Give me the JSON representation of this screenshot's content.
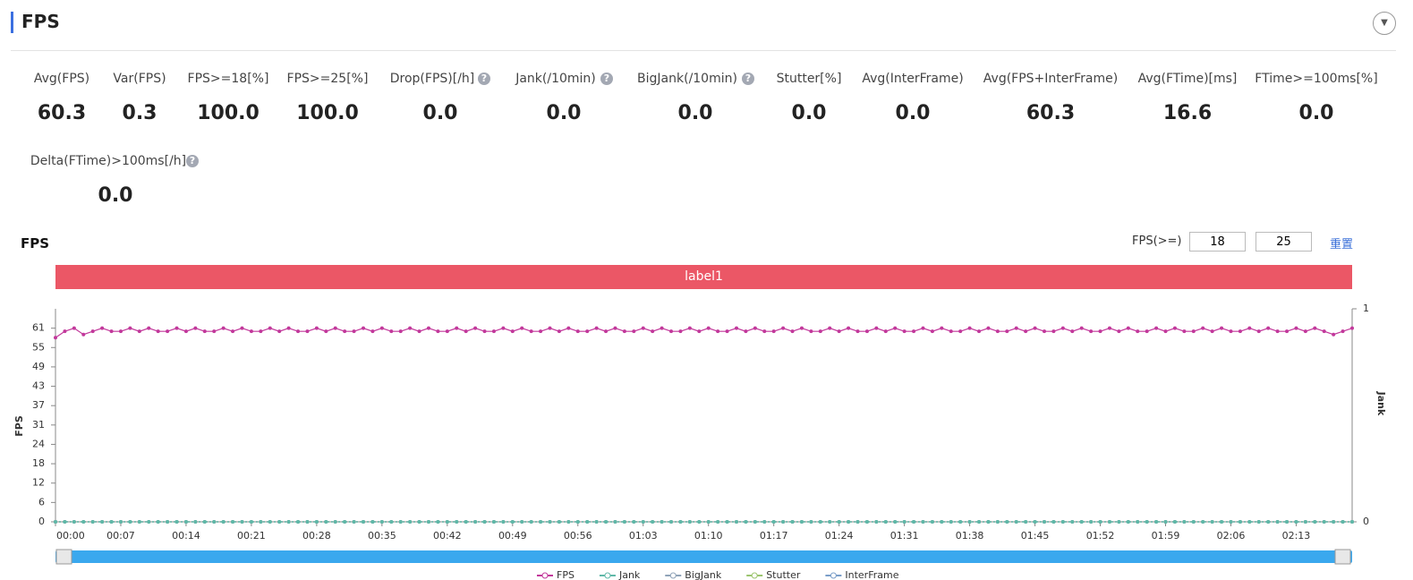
{
  "header": {
    "title": "FPS"
  },
  "metrics": [
    {
      "label": "Avg(FPS)",
      "value": "60.3"
    },
    {
      "label": "Var(FPS)",
      "value": "0.3"
    },
    {
      "label": "FPS>=18[%]",
      "value": "100.0"
    },
    {
      "label": "FPS>=25[%]",
      "value": "100.0"
    },
    {
      "label": "Drop(FPS)[/h]",
      "value": "0.0"
    },
    {
      "label": "Jank(/10min)",
      "value": "0.0"
    },
    {
      "label": "BigJank(/10min)",
      "value": "0.0"
    },
    {
      "label": "Stutter[%]",
      "value": "0.0"
    },
    {
      "label": "Avg(InterFrame)",
      "value": "0.0"
    },
    {
      "label": "Avg(FPS+InterFrame)",
      "value": "60.3"
    },
    {
      "label": "Avg(FTime)[ms]",
      "value": "16.6"
    },
    {
      "label": "FTime>=100ms[%]",
      "value": "0.0"
    },
    {
      "label": "Delta(FTime)>100ms[/h]",
      "value": "0.0"
    }
  ],
  "chart_panel": {
    "title": "FPS",
    "threshold_label": "FPS(>=)",
    "thresholds": [
      18,
      25
    ],
    "reset": "重置",
    "band_label": "label1"
  },
  "chart_data": {
    "type": "line",
    "y_label": "FPS",
    "y2_label": "Jank",
    "categories": [
      "00:00",
      null,
      null,
      null,
      null,
      null,
      null,
      "00:07",
      null,
      null,
      null,
      null,
      null,
      null,
      "00:14",
      null,
      null,
      null,
      null,
      null,
      null,
      "00:21",
      null,
      null,
      null,
      null,
      null,
      null,
      "00:28",
      null,
      null,
      null,
      null,
      null,
      null,
      "00:35",
      null,
      null,
      null,
      null,
      null,
      null,
      "00:42",
      null,
      null,
      null,
      null,
      null,
      null,
      "00:49",
      null,
      null,
      null,
      null,
      null,
      null,
      "00:56",
      null,
      null,
      null,
      null,
      null,
      null,
      "01:03",
      null,
      null,
      null,
      null,
      null,
      null,
      "01:10",
      null,
      null,
      null,
      null,
      null,
      null,
      "01:17",
      null,
      null,
      null,
      null,
      null,
      null,
      "01:24",
      null,
      null,
      null,
      null,
      null,
      null,
      "01:31",
      null,
      null,
      null,
      null,
      null,
      null,
      "01:38",
      null,
      null,
      null,
      null,
      null,
      null,
      "01:45",
      null,
      null,
      null,
      null,
      null,
      null,
      "01:52",
      null,
      null,
      null,
      null,
      null,
      null,
      "01:59",
      null,
      null,
      null,
      null,
      null,
      null,
      "02:06",
      null,
      null,
      null,
      null,
      null,
      null,
      "02:13",
      null,
      null,
      null,
      null,
      null,
      null
    ],
    "ylim": [
      0,
      67.1
    ],
    "yticks": [
      0,
      {
        "value": 6.1,
        "label": "6"
      },
      {
        "value": 12.2,
        "label": "12"
      },
      {
        "value": 18.3,
        "label": "18"
      },
      {
        "value": 24.4,
        "label": "24"
      },
      {
        "value": 30.5,
        "label": "31"
      },
      {
        "value": 36.6,
        "label": "37"
      },
      {
        "value": 42.7,
        "label": "43"
      },
      {
        "value": 48.8,
        "label": "49"
      },
      {
        "value": 54.9,
        "label": "55"
      },
      61
    ],
    "y2lim": [
      0,
      1
    ],
    "y2ticks": [
      0,
      1
    ],
    "series": [
      {
        "name": "FPS",
        "color": "#c2389b",
        "values": [
          58,
          60,
          61,
          59,
          60,
          61,
          60,
          60,
          61,
          60,
          61,
          60,
          60,
          61,
          60,
          61,
          60,
          60,
          61,
          60,
          61,
          60,
          60,
          61,
          60,
          61,
          60,
          60,
          61,
          60,
          61,
          60,
          60,
          61,
          60,
          61,
          60,
          60,
          61,
          60,
          61,
          60,
          60,
          61,
          60,
          61,
          60,
          60,
          61,
          60,
          61,
          60,
          60,
          61,
          60,
          61,
          60,
          60,
          61,
          60,
          61,
          60,
          60,
          61,
          60,
          61,
          60,
          60,
          61,
          60,
          61,
          60,
          60,
          61,
          60,
          61,
          60,
          60,
          61,
          60,
          61,
          60,
          60,
          61,
          60,
          61,
          60,
          60,
          61,
          60,
          61,
          60,
          60,
          61,
          60,
          61,
          60,
          60,
          61,
          60,
          61,
          60,
          60,
          61,
          60,
          61,
          60,
          60,
          61,
          60,
          61,
          60,
          60,
          61,
          60,
          61,
          60,
          60,
          61,
          60,
          61,
          60,
          60,
          61,
          60,
          61,
          60,
          60,
          61,
          60,
          61,
          60,
          60,
          61,
          60,
          61,
          60,
          59,
          60,
          61
        ]
      },
      {
        "name": "Jank",
        "color": "#5fb8a8",
        "axis": "y2",
        "values": [
          0,
          0,
          0,
          0,
          0,
          0,
          0,
          0,
          0,
          0,
          0,
          0,
          0,
          0,
          0,
          0,
          0,
          0,
          0,
          0,
          0,
          0,
          0,
          0,
          0,
          0,
          0,
          0,
          0,
          0,
          0,
          0,
          0,
          0,
          0,
          0,
          0,
          0,
          0,
          0,
          0,
          0,
          0,
          0,
          0,
          0,
          0,
          0,
          0,
          0,
          0,
          0,
          0,
          0,
          0,
          0,
          0,
          0,
          0,
          0,
          0,
          0,
          0,
          0,
          0,
          0,
          0,
          0,
          0,
          0,
          0,
          0,
          0,
          0,
          0,
          0,
          0,
          0,
          0,
          0,
          0,
          0,
          0,
          0,
          0,
          0,
          0,
          0,
          0,
          0,
          0,
          0,
          0,
          0,
          0,
          0,
          0,
          0,
          0,
          0,
          0,
          0,
          0,
          0,
          0,
          0,
          0,
          0,
          0,
          0,
          0,
          0,
          0,
          0,
          0,
          0,
          0,
          0,
          0,
          0,
          0,
          0,
          0,
          0,
          0,
          0,
          0,
          0,
          0,
          0,
          0,
          0,
          0,
          0,
          0,
          0,
          0,
          0,
          0,
          0
        ]
      },
      {
        "name": "BigJank",
        "color": "#8fa3b8",
        "axis": "y2",
        "values": [
          0,
          0,
          0,
          0,
          0,
          0,
          0,
          0,
          0,
          0,
          0,
          0,
          0,
          0,
          0,
          0,
          0,
          0,
          0,
          0,
          0,
          0,
          0,
          0,
          0,
          0,
          0,
          0,
          0,
          0,
          0,
          0,
          0,
          0,
          0,
          0,
          0,
          0,
          0,
          0,
          0,
          0,
          0,
          0,
          0,
          0,
          0,
          0,
          0,
          0,
          0,
          0,
          0,
          0,
          0,
          0,
          0,
          0,
          0,
          0,
          0,
          0,
          0,
          0,
          0,
          0,
          0,
          0,
          0,
          0,
          0,
          0,
          0,
          0,
          0,
          0,
          0,
          0,
          0,
          0,
          0,
          0,
          0,
          0,
          0,
          0,
          0,
          0,
          0,
          0,
          0,
          0,
          0,
          0,
          0,
          0,
          0,
          0,
          0,
          0,
          0,
          0,
          0,
          0,
          0,
          0,
          0,
          0,
          0,
          0,
          0,
          0,
          0,
          0,
          0,
          0,
          0,
          0,
          0,
          0,
          0,
          0,
          0,
          0,
          0,
          0,
          0,
          0,
          0,
          0,
          0,
          0,
          0,
          0,
          0,
          0,
          0,
          0,
          0,
          0
        ]
      },
      {
        "name": "Stutter",
        "color": "#9bc46e",
        "axis": "y2",
        "values": [
          0,
          0,
          0,
          0,
          0,
          0,
          0,
          0,
          0,
          0,
          0,
          0,
          0,
          0,
          0,
          0,
          0,
          0,
          0,
          0,
          0,
          0,
          0,
          0,
          0,
          0,
          0,
          0,
          0,
          0,
          0,
          0,
          0,
          0,
          0,
          0,
          0,
          0,
          0,
          0,
          0,
          0,
          0,
          0,
          0,
          0,
          0,
          0,
          0,
          0,
          0,
          0,
          0,
          0,
          0,
          0,
          0,
          0,
          0,
          0,
          0,
          0,
          0,
          0,
          0,
          0,
          0,
          0,
          0,
          0,
          0,
          0,
          0,
          0,
          0,
          0,
          0,
          0,
          0,
          0,
          0,
          0,
          0,
          0,
          0,
          0,
          0,
          0,
          0,
          0,
          0,
          0,
          0,
          0,
          0,
          0,
          0,
          0,
          0,
          0,
          0,
          0,
          0,
          0,
          0,
          0,
          0,
          0,
          0,
          0,
          0,
          0,
          0,
          0,
          0,
          0,
          0,
          0,
          0,
          0,
          0,
          0,
          0,
          0,
          0,
          0,
          0,
          0,
          0,
          0,
          0,
          0,
          0,
          0,
          0,
          0,
          0,
          0,
          0,
          0
        ]
      },
      {
        "name": "InterFrame",
        "color": "#7a9ec9",
        "axis": "y2",
        "values": [
          0,
          0,
          0,
          0,
          0,
          0,
          0,
          0,
          0,
          0,
          0,
          0,
          0,
          0,
          0,
          0,
          0,
          0,
          0,
          0,
          0,
          0,
          0,
          0,
          0,
          0,
          0,
          0,
          0,
          0,
          0,
          0,
          0,
          0,
          0,
          0,
          0,
          0,
          0,
          0,
          0,
          0,
          0,
          0,
          0,
          0,
          0,
          0,
          0,
          0,
          0,
          0,
          0,
          0,
          0,
          0,
          0,
          0,
          0,
          0,
          0,
          0,
          0,
          0,
          0,
          0,
          0,
          0,
          0,
          0,
          0,
          0,
          0,
          0,
          0,
          0,
          0,
          0,
          0,
          0,
          0,
          0,
          0,
          0,
          0,
          0,
          0,
          0,
          0,
          0,
          0,
          0,
          0,
          0,
          0,
          0,
          0,
          0,
          0,
          0,
          0,
          0,
          0,
          0,
          0,
          0,
          0,
          0,
          0,
          0,
          0,
          0,
          0,
          0,
          0,
          0,
          0,
          0,
          0,
          0,
          0,
          0,
          0,
          0,
          0,
          0,
          0,
          0,
          0,
          0,
          0,
          0,
          0,
          0,
          0,
          0,
          0,
          0,
          0,
          0
        ]
      }
    ]
  }
}
